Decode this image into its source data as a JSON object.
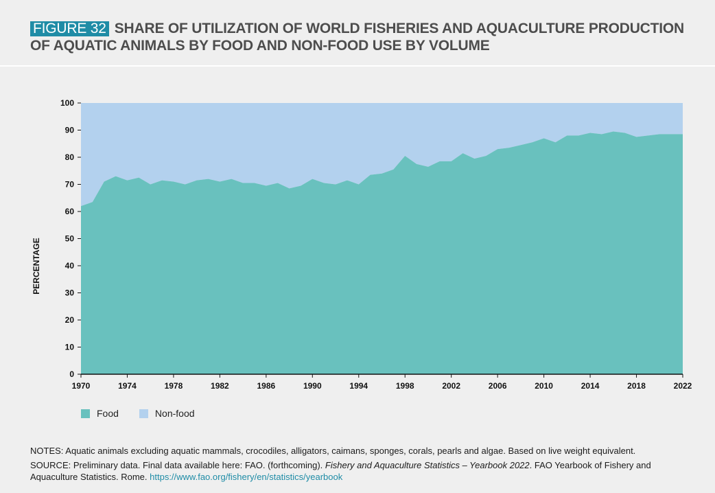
{
  "header": {
    "figure_label": "FIGURE 32",
    "title": "SHARE OF UTILIZATION OF WORLD FISHERIES AND AQUACULTURE PRODUCTION OF AQUATIC ANIMALS BY FOOD AND NON-FOOD USE BY VOLUME"
  },
  "colors": {
    "food": "#69c1be",
    "non_food": "#b3d1ee",
    "accent": "#1f8ca6"
  },
  "chart_data": {
    "type": "area",
    "stacked": true,
    "title": "",
    "xlabel": "",
    "ylabel": "PERCENTAGE",
    "xlim": [
      1970,
      2022
    ],
    "ylim": [
      0,
      100
    ],
    "x_ticks": [
      "1970",
      "1974",
      "1978",
      "1982",
      "1986",
      "1990",
      "1994",
      "1998",
      "2002",
      "2006",
      "2010",
      "2014",
      "2018",
      "2022"
    ],
    "y_ticks": [
      "0",
      "10",
      "20",
      "30",
      "40",
      "50",
      "60",
      "70",
      "80",
      "90",
      "100"
    ],
    "x": [
      1970,
      1971,
      1972,
      1973,
      1974,
      1975,
      1976,
      1977,
      1978,
      1979,
      1980,
      1981,
      1982,
      1983,
      1984,
      1985,
      1986,
      1987,
      1988,
      1989,
      1990,
      1991,
      1992,
      1993,
      1994,
      1995,
      1996,
      1997,
      1998,
      1999,
      2000,
      2001,
      2002,
      2003,
      2004,
      2005,
      2006,
      2007,
      2008,
      2009,
      2010,
      2011,
      2012,
      2013,
      2014,
      2015,
      2016,
      2017,
      2018,
      2019,
      2020,
      2021,
      2022
    ],
    "series": [
      {
        "name": "Food",
        "values": [
          62,
          63.5,
          71,
          73,
          71.5,
          72.5,
          70,
          71.5,
          71,
          70,
          71.5,
          72,
          71,
          72,
          70.5,
          70.5,
          69.5,
          70.5,
          68.5,
          69.5,
          72,
          70.5,
          70,
          71.5,
          70,
          73.5,
          74,
          75.5,
          80.5,
          77.5,
          76.5,
          78.5,
          78.5,
          81.5,
          79.5,
          80.5,
          83,
          83.5,
          84.5,
          85.5,
          87,
          85.5,
          88,
          88,
          89,
          88.5,
          89.5,
          89,
          87.5,
          88,
          88.5,
          88.5,
          88.5
        ]
      },
      {
        "name": "Non-food",
        "values": [
          38,
          36.5,
          29,
          27,
          28.5,
          27.5,
          30,
          28.5,
          29,
          30,
          28.5,
          28,
          29,
          28,
          29.5,
          29.5,
          30.5,
          29.5,
          31.5,
          30.5,
          28,
          29.5,
          30,
          28.5,
          30,
          26.5,
          26,
          24.5,
          19.5,
          22.5,
          23.5,
          21.5,
          21.5,
          18.5,
          20.5,
          19.5,
          17,
          16.5,
          15.5,
          14.5,
          13,
          14.5,
          12,
          12,
          11,
          11.5,
          10.5,
          11,
          12.5,
          12,
          11.5,
          11.5,
          11.5
        ]
      }
    ],
    "legend": [
      "Food",
      "Non-food"
    ],
    "legend_position": "bottom-left"
  },
  "notes": {
    "notes_text": "NOTES: Aquatic animals excluding aquatic mammals, crocodiles, alligators, caimans, sponges, corals, pearls and algae. Based on live weight equivalent.",
    "source_prefix": "SOURCE: Preliminary data. Final data available here: FAO. (forthcoming). ",
    "source_italic": "Fishery and Aquaculture Statistics – Yearbook 2022",
    "source_suffix": ". FAO Yearbook of Fishery and Aquaculture Statistics. Rome. ",
    "source_link": "https://www.fao.org/fishery/en/statistics/yearbook"
  }
}
